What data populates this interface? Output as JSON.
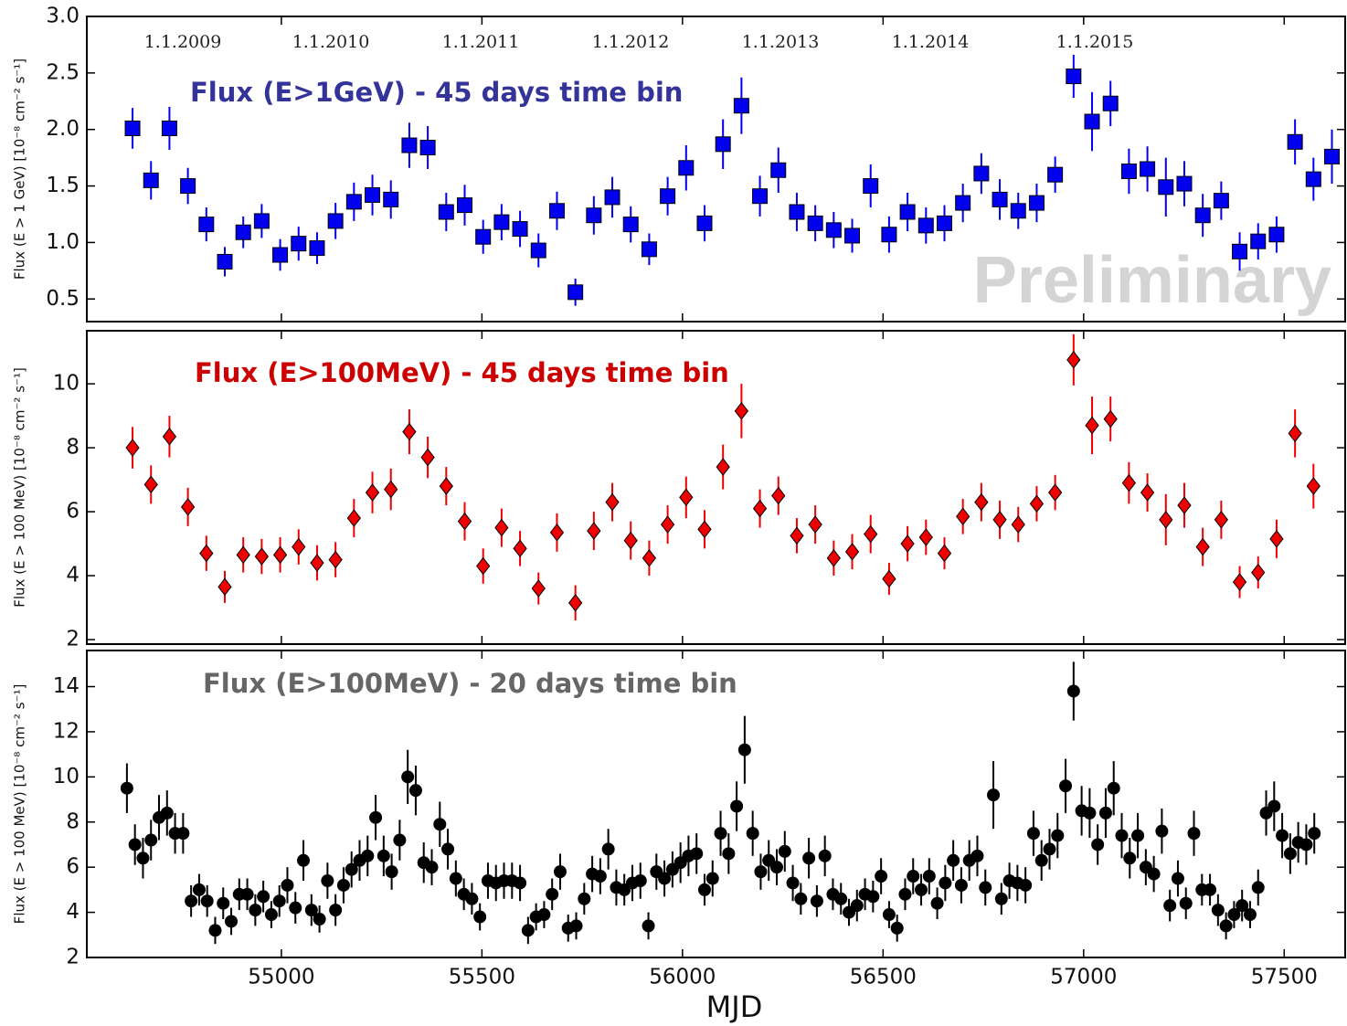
{
  "chart_data": [
    {
      "type": "scatter",
      "marker": "square",
      "color": "#0000ee",
      "annotation": "Flux (E>1GeV) - 45 days time bin",
      "annotation_color": "#333399",
      "watermark": "Preliminary",
      "top_labels": [
        "1.1.2009",
        "1.1.2010",
        "1.1.2011",
        "1.1.2012",
        "1.1.2013",
        "1.1.2014",
        "1.1.2015"
      ],
      "ylabel": "Flux (E > 1 GeV) [10⁻⁸ cm⁻² s⁻¹]",
      "ylim": [
        0.3,
        3.0
      ],
      "yticks": [
        0.5,
        {
          "value": 1,
          "label": "1.0"
        },
        1.5,
        {
          "value": 2,
          "label": "2.0"
        },
        2.5,
        {
          "value": 3,
          "label": "3.0"
        }
      ],
      "x": [
        54629,
        54675,
        54721,
        54767,
        54813,
        54859,
        54905,
        54951,
        54997,
        55043,
        55089,
        55135,
        55181,
        55227,
        55273,
        55319,
        55365,
        55411,
        55457,
        55503,
        55549,
        55595,
        55641,
        55687,
        55733,
        55779,
        55825,
        55871,
        55917,
        55963,
        56009,
        56055,
        56101,
        56147,
        56193,
        56239,
        56285,
        56331,
        56377,
        56423,
        56469,
        56515,
        56561,
        56607,
        56653,
        56699,
        56745,
        56791,
        56837,
        56883,
        56929,
        56975,
        57021,
        57067,
        57113,
        57159,
        57205,
        57251,
        57297,
        57343,
        57389,
        57435,
        57481,
        57527,
        57573,
        57619
      ],
      "values": [
        2.01,
        1.55,
        2.01,
        1.5,
        1.16,
        0.83,
        1.09,
        1.19,
        0.89,
        0.99,
        0.95,
        1.19,
        1.36,
        1.42,
        1.38,
        1.86,
        1.84,
        1.27,
        1.33,
        1.05,
        1.18,
        1.12,
        0.93,
        1.28,
        0.56,
        1.24,
        1.4,
        1.16,
        0.94,
        1.41,
        1.66,
        1.17,
        1.87,
        2.21,
        1.41,
        1.64,
        1.27,
        1.17,
        1.11,
        1.06,
        1.5,
        1.07,
        1.27,
        1.15,
        1.17,
        1.35,
        1.61,
        1.38,
        1.28,
        1.35,
        1.6,
        2.47,
        2.07,
        2.23,
        1.63,
        1.65,
        1.49,
        1.52,
        1.24,
        1.37,
        0.92,
        1.01,
        1.07,
        1.89,
        1.56,
        1.76
      ],
      "errors": [
        0.18,
        0.17,
        0.19,
        0.16,
        0.15,
        0.13,
        0.14,
        0.15,
        0.14,
        0.15,
        0.14,
        0.16,
        0.17,
        0.18,
        0.17,
        0.2,
        0.19,
        0.17,
        0.18,
        0.15,
        0.16,
        0.16,
        0.15,
        0.17,
        0.12,
        0.17,
        0.18,
        0.16,
        0.14,
        0.17,
        0.2,
        0.16,
        0.22,
        0.25,
        0.18,
        0.2,
        0.17,
        0.16,
        0.16,
        0.15,
        0.19,
        0.16,
        0.17,
        0.16,
        0.16,
        0.17,
        0.18,
        0.18,
        0.16,
        0.17,
        0.16,
        0.19,
        0.26,
        0.2,
        0.2,
        0.2,
        0.26,
        0.2,
        0.19,
        0.17,
        0.17,
        0.16,
        0.16,
        0.2,
        0.19,
        0.24
      ]
    },
    {
      "type": "scatter",
      "marker": "diamond",
      "color": "#ee0000",
      "annotation": "Flux (E>100MeV) - 45 days time bin",
      "annotation_color": "#cc0000",
      "ylabel": "Flux (E > 100 MeV) [10⁻⁸ cm⁻² s⁻¹]",
      "ylim": [
        1.86,
        11.66
      ],
      "yticks": [
        2,
        4,
        6,
        8,
        10
      ],
      "x": [
        54629,
        54675,
        54721,
        54767,
        54813,
        54859,
        54905,
        54951,
        54997,
        55043,
        55089,
        55135,
        55181,
        55227,
        55273,
        55319,
        55365,
        55411,
        55457,
        55503,
        55549,
        55595,
        55641,
        55687,
        55733,
        55779,
        55825,
        55871,
        55917,
        55963,
        56009,
        56055,
        56101,
        56147,
        56193,
        56239,
        56285,
        56331,
        56377,
        56423,
        56469,
        56515,
        56561,
        56607,
        56653,
        56699,
        56745,
        56791,
        56837,
        56883,
        56929,
        56975,
        57021,
        57067,
        57113,
        57159,
        57205,
        57251,
        57297,
        57343,
        57389,
        57435,
        57481,
        57527,
        57573
      ],
      "values": [
        8.0,
        6.85,
        8.35,
        6.15,
        4.7,
        3.65,
        4.65,
        4.6,
        4.65,
        4.9,
        4.4,
        4.5,
        5.8,
        6.6,
        6.7,
        8.5,
        7.7,
        6.8,
        5.7,
        4.3,
        5.5,
        4.85,
        3.6,
        5.35,
        3.15,
        5.4,
        6.3,
        5.1,
        4.55,
        5.6,
        6.45,
        5.45,
        7.4,
        9.15,
        6.1,
        6.5,
        5.25,
        5.6,
        4.55,
        4.75,
        5.3,
        3.9,
        5.0,
        5.2,
        4.7,
        5.85,
        6.3,
        5.75,
        5.6,
        6.25,
        6.6,
        10.75,
        8.7,
        8.9,
        6.9,
        6.6,
        5.75,
        6.2,
        4.9,
        5.75,
        3.8,
        4.1,
        5.15,
        8.45,
        6.8
      ],
      "errors": [
        0.65,
        0.6,
        0.65,
        0.6,
        0.55,
        0.5,
        0.55,
        0.55,
        0.55,
        0.55,
        0.55,
        0.55,
        0.6,
        0.65,
        0.65,
        0.7,
        0.65,
        0.6,
        0.6,
        0.55,
        0.6,
        0.55,
        0.5,
        0.6,
        0.55,
        0.6,
        0.6,
        0.6,
        0.55,
        0.6,
        0.65,
        0.6,
        0.7,
        0.85,
        0.6,
        0.6,
        0.55,
        0.6,
        0.55,
        0.55,
        0.6,
        0.5,
        0.55,
        0.55,
        0.5,
        0.55,
        0.6,
        0.6,
        0.55,
        0.55,
        0.55,
        0.8,
        0.9,
        0.7,
        0.65,
        0.6,
        0.8,
        0.7,
        0.6,
        0.6,
        0.5,
        0.5,
        0.6,
        0.75,
        0.7
      ]
    },
    {
      "type": "scatter",
      "marker": "circle",
      "color": "#000000",
      "annotation": "Flux (E>100MeV) - 20 days time bin",
      "annotation_color": "#666666",
      "ylabel": "Flux (E > 100 MeV) [10⁻⁸ cm⁻² s⁻¹]",
      "xlabel": "MJD",
      "xlim": [
        54515,
        57652
      ],
      "xticks": [
        55000,
        55500,
        56000,
        56500,
        57000,
        57500
      ],
      "ylim": [
        2,
        15.6
      ],
      "yticks": [
        2,
        4,
        6,
        8,
        10,
        12,
        14
      ],
      "x": [
        54615,
        54635,
        54655,
        54675,
        54695,
        54715,
        54735,
        54755,
        54775,
        54795,
        54815,
        54835,
        54855,
        54875,
        54895,
        54915,
        54935,
        54955,
        54975,
        54995,
        55015,
        55035,
        55055,
        55075,
        55095,
        55115,
        55135,
        55155,
        55175,
        55195,
        55215,
        55235,
        55255,
        55275,
        55295,
        55315,
        55335,
        55355,
        55375,
        55395,
        55415,
        55435,
        55455,
        55475,
        55495,
        55515,
        55535,
        55555,
        55575,
        55595,
        55615,
        55635,
        55655,
        55675,
        55695,
        55715,
        55735,
        55755,
        55775,
        55795,
        55815,
        55835,
        55855,
        55875,
        55895,
        55915,
        55935,
        55955,
        55975,
        55995,
        56015,
        56035,
        56055,
        56075,
        56095,
        56115,
        56135,
        56155,
        56175,
        56195,
        56215,
        56235,
        56255,
        56275,
        56295,
        56315,
        56335,
        56355,
        56375,
        56395,
        56415,
        56435,
        56455,
        56475,
        56495,
        56515,
        56535,
        56555,
        56575,
        56595,
        56615,
        56635,
        56655,
        56675,
        56695,
        56715,
        56735,
        56755,
        56775,
        56795,
        56815,
        56835,
        56855,
        56875,
        56895,
        56915,
        56935,
        56955,
        56975,
        56995,
        57015,
        57035,
        57055,
        57075,
        57095,
        57115,
        57135,
        57155,
        57175,
        57195,
        57215,
        57235,
        57255,
        57275,
        57295,
        57315,
        57335,
        57355,
        57375,
        57395,
        57415,
        57435,
        57455,
        57475,
        57495,
        57515,
        57535,
        57555,
        57575
      ],
      "values": [
        9.5,
        7.0,
        6.4,
        7.2,
        8.2,
        8.4,
        7.5,
        7.5,
        4.5,
        5.0,
        4.5,
        3.2,
        4.4,
        3.6,
        4.8,
        4.8,
        4.1,
        4.7,
        3.9,
        4.5,
        5.2,
        4.2,
        6.3,
        4.1,
        3.7,
        5.4,
        4.1,
        5.2,
        5.9,
        6.3,
        6.5,
        8.2,
        6.5,
        5.8,
        7.2,
        10.0,
        9.4,
        6.2,
        6.0,
        7.9,
        6.8,
        5.5,
        4.8,
        4.6,
        3.8,
        5.4,
        5.3,
        5.4,
        5.4,
        5.3,
        3.2,
        3.8,
        3.9,
        4.8,
        5.8,
        3.3,
        3.4,
        4.6,
        5.7,
        5.6,
        6.8,
        5.1,
        5.0,
        5.3,
        5.4,
        3.4,
        5.8,
        5.5,
        5.9,
        6.2,
        6.5,
        6.6,
        5.0,
        5.5,
        7.5,
        6.6,
        8.7,
        11.2,
        7.5,
        5.8,
        6.3,
        6.0,
        6.7,
        5.3,
        4.6,
        6.4,
        4.5,
        6.5,
        4.8,
        4.6,
        4.0,
        4.3,
        4.8,
        4.7,
        5.6,
        3.9,
        3.3,
        4.8,
        5.6,
        5.0,
        5.6,
        4.4,
        5.3,
        6.3,
        5.2,
        6.3,
        6.5,
        5.1,
        9.2,
        4.6,
        5.4,
        5.3,
        5.2,
        7.5,
        6.3,
        6.8,
        7.4,
        9.6,
        13.8,
        8.5,
        8.4,
        7.0,
        8.4,
        9.5,
        7.4,
        6.4,
        7.4,
        6.0,
        5.7,
        7.6,
        4.3,
        5.5,
        4.4,
        7.5,
        5.0,
        5.0,
        4.1,
        3.4,
        3.9,
        4.3,
        3.9,
        5.1,
        8.4,
        8.7,
        7.4,
        6.6,
        7.1,
        7.0,
        7.5
      ],
      "errors": [
        1.1,
        0.9,
        0.9,
        0.9,
        1.0,
        1.0,
        0.9,
        0.9,
        0.7,
        0.7,
        0.7,
        0.6,
        0.7,
        0.6,
        0.7,
        0.7,
        0.7,
        0.7,
        0.6,
        0.7,
        0.8,
        0.7,
        0.9,
        0.7,
        0.6,
        0.8,
        0.7,
        0.8,
        0.8,
        0.9,
        0.9,
        1.0,
        0.9,
        0.8,
        0.9,
        1.2,
        1.1,
        0.9,
        0.8,
        1.0,
        0.9,
        0.8,
        0.7,
        0.7,
        0.6,
        0.8,
        0.8,
        0.8,
        0.8,
        0.8,
        0.6,
        0.6,
        0.6,
        0.7,
        0.8,
        0.6,
        0.6,
        0.7,
        0.8,
        0.8,
        0.9,
        0.8,
        0.7,
        0.8,
        0.8,
        0.6,
        0.8,
        0.8,
        0.8,
        0.9,
        0.9,
        0.9,
        0.7,
        0.8,
        1.0,
        0.9,
        1.1,
        1.5,
        1.0,
        0.8,
        0.9,
        0.8,
        0.9,
        0.8,
        0.7,
        0.9,
        0.7,
        0.9,
        0.7,
        0.7,
        0.6,
        0.7,
        0.7,
        0.7,
        0.8,
        0.6,
        0.6,
        0.7,
        0.8,
        0.7,
        0.8,
        0.7,
        0.8,
        0.9,
        0.8,
        0.9,
        0.9,
        0.8,
        1.5,
        0.7,
        0.8,
        0.8,
        0.8,
        1.0,
        0.9,
        0.9,
        1.0,
        1.2,
        1.3,
        1.1,
        1.1,
        0.9,
        1.1,
        1.2,
        1.0,
        0.9,
        1.0,
        0.8,
        0.8,
        1.0,
        0.7,
        0.8,
        0.7,
        1.0,
        0.7,
        0.7,
        0.7,
        0.6,
        0.6,
        0.7,
        0.6,
        0.8,
        1.0,
        1.1,
        1.0,
        0.9,
        0.9,
        0.9,
        0.9
      ]
    }
  ]
}
